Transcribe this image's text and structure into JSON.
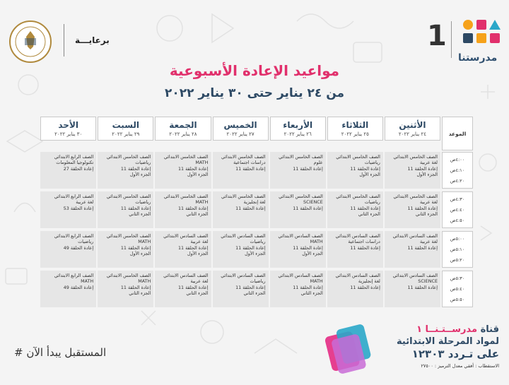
{
  "brand": {
    "number": "1",
    "name": "مدرستنا"
  },
  "ministry": {
    "sponsor": "برعايـــة"
  },
  "title": "مواعيد الإعادة الأسبوعية",
  "subtitle": "من ٢٤ يناير حتى ٣٠ يناير ٢٠٢٢",
  "table": {
    "time_header": "الموعد",
    "days": [
      {
        "name": "الأثنين",
        "date": "٢٤ يناير ٢٠٢٢"
      },
      {
        "name": "الثلاثاء",
        "date": "٢٥ يناير ٢٠٢٢"
      },
      {
        "name": "الأربعاء",
        "date": "٢٦ يناير ٢٠٢٢"
      },
      {
        "name": "الخميس",
        "date": "٢٧ يناير ٢٠٢٢"
      },
      {
        "name": "الجمعة",
        "date": "٢٨ يناير ٢٠٢٢"
      },
      {
        "name": "السبت",
        "date": "٢٩ يناير ٢٠٢٢"
      },
      {
        "name": "الأحد",
        "date": "٣٠ يناير ٢٠٢٢"
      }
    ],
    "time_slots": [
      [
        "٤:٠٠ص",
        "٤:١٠ص",
        "٤:٢٠ص"
      ],
      [
        "٤:٣٠ص",
        "٤:٤٠ص",
        "٤:٥٠ص"
      ],
      [
        "٥:٠٠ص",
        "٥:١٠ص",
        "٥:٢٠ص"
      ],
      [
        "٥:٣٠ص",
        "٥:٤٠ص",
        "٥:٥٠ص"
      ]
    ],
    "rows": [
      [
        [
          "الصف الخامس الابتدائي",
          "لغة عربية",
          "إعادة الحلقة 11",
          "الجزء الأول"
        ],
        [
          "الصف الخامس الابتدائي",
          "رياضيات",
          "إعادة الحلقة 11",
          "الجزء الأول"
        ],
        [
          "الصف الخامس الابتدائي",
          "علوم",
          "إعادة الحلقة 11"
        ],
        [
          "الصف الخامس الابتدائي",
          "دراسات اجتماعية",
          "إعادة الحلقة 11"
        ],
        [
          "الصف الخامس الابتدائي",
          "MATH",
          "إعادة الحلقة 11",
          "الجزء الأول"
        ],
        [
          "الصف الخامس الابتدائي",
          "رياضيات",
          "إعادة الحلقة 11",
          "الجزء الأول"
        ],
        [
          "الصف الرابع الابتدائي",
          "تكنولوجيا المعلومات",
          "إعادة الحلقة 27"
        ]
      ],
      [
        [
          "الصف الخامس الابتدائي",
          "لغة عربية",
          "إعادة الحلقة 11",
          "الجزء الثاني"
        ],
        [
          "الصف الخامس الابتدائي",
          "رياضيات",
          "إعادة الحلقة 11",
          "الجزء الثاني"
        ],
        [
          "الصف الخامس الابتدائي",
          "SCIENCE",
          "إعادة الحلقة 11"
        ],
        [
          "الصف الخامس الابتدائي",
          "لغة إنجليزية",
          "إعادة الحلقة 11"
        ],
        [
          "الصف الخامس الابتدائي",
          "MATH",
          "إعادة الحلقة 11",
          "الجزء الثاني"
        ],
        [
          "الصف الخامس الابتدائي",
          "رياضيات",
          "إعادة الحلقة 11",
          "الجزء الثاني"
        ],
        [
          "الصف الرابع الابتدائي",
          "لغة عربية",
          "إعادة الحلقة 53"
        ]
      ],
      [
        [
          "الصف السادس الابتدائي",
          "لغة عربية",
          "إعادة الحلقة 11"
        ],
        [
          "الصف السادس الابتدائي",
          "دراسات اجتماعية",
          "إعادة الحلقة 11"
        ],
        [
          "الصف السادس الابتدائي",
          "MATH",
          "إعادة الحلقة 11",
          "الجزء الأول"
        ],
        [
          "الصف السادس الابتدائي",
          "رياضيات",
          "إعادة الحلقة 11",
          "الجزء الأول"
        ],
        [
          "الصف السادس الابتدائي",
          "لغة عربية",
          "إعادة الحلقة 11",
          "الجزء الأول"
        ],
        [
          "الصف الخامس الابتدائي",
          "MATH",
          "إعادة الحلقة 11",
          "الجزء الأول"
        ],
        [
          "الصف الرابع الابتدائي",
          "رياضيات",
          "إعادة الحلقة 49"
        ]
      ],
      [
        [
          "الصف السادس الابتدائي",
          "SCIENCE",
          "إعادة الحلقة 11"
        ],
        [
          "الصف السادس الابتدائي",
          "لغة إنجليزية",
          "إعادة الحلقة 11"
        ],
        [
          "الصف السادس الابتدائي",
          "MATH",
          "إعادة الحلقة 11",
          "الجزء الثاني"
        ],
        [
          "الصف السادس الابتدائي",
          "رياضيات",
          "إعادة الحلقة 11",
          "الجزء الثاني"
        ],
        [
          "الصف السادس الابتدائي",
          "لغة عربية",
          "إعادة الحلقة 11",
          "الجزء الثاني"
        ],
        [
          "الصف الخامس الابتدائي",
          "MATH",
          "إعادة الحلقة 11",
          "الجزء الثاني"
        ],
        [
          "الصف الرابع الابتدائي",
          "MATH",
          "إعادة الحلقة 49"
        ]
      ]
    ]
  },
  "footer": {
    "hashtag": "# المستقبل يبدأ الآن",
    "channel_prefix": "قناة",
    "channel_name": "مدرســتـنــا ١",
    "channel_line2": "لمواد المرحلة الابتدائية",
    "frequency": "على تـردد ١٢٣٠٣",
    "reception": "الاستقطاب : أفقي معدل الترميز : ٢٧٥٠٠"
  },
  "colors": {
    "accent_pink": "#e1306c",
    "navy": "#2d4964",
    "cell_bg": "#e6e6e6"
  }
}
